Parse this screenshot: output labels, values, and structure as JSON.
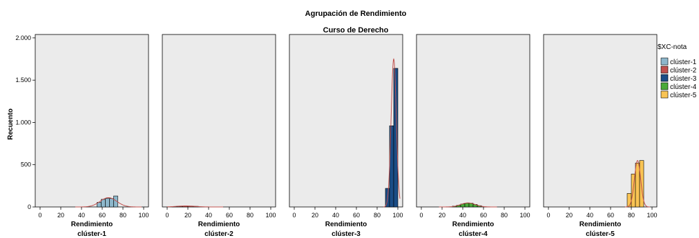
{
  "chart_data": {
    "type": "bar",
    "title": "Agrupación de Rendimiento",
    "subtitle": "Curso de Derecho",
    "ylabel": "Recuento",
    "ylim": [
      0,
      2000
    ],
    "yticks": [
      0,
      500,
      1000,
      1500,
      2000
    ],
    "ytick_labels": [
      "0",
      "500",
      "1.000",
      "1.500",
      "2.000"
    ],
    "xlim": [
      0,
      100
    ],
    "xticks": [
      0,
      20,
      40,
      60,
      80,
      100
    ],
    "xtick_labels": [
      "0",
      "20",
      "40",
      "60",
      "80",
      "100"
    ],
    "legend": {
      "title": "$XC-nota",
      "position": "right",
      "items": [
        {
          "label": "clúster-1",
          "color": "#8db7cb"
        },
        {
          "label": "clúster-2",
          "color": "#c0504d"
        },
        {
          "label": "clúster-3",
          "color": "#1b4d86"
        },
        {
          "label": "clúster-4",
          "color": "#4aaa3a"
        },
        {
          "label": "clúster-5",
          "color": "#f9c454"
        }
      ]
    },
    "curve_color": "#c0504d",
    "panels": [
      {
        "xlabel": "Rendimiento",
        "sublabel": "clúster-1",
        "color": "#8db7cb",
        "bars": [
          {
            "x0": 55,
            "x1": 59,
            "y": 55
          },
          {
            "x0": 59,
            "x1": 63,
            "y": 90
          },
          {
            "x0": 63,
            "x1": 67,
            "y": 100
          },
          {
            "x0": 67,
            "x1": 71,
            "y": 100
          },
          {
            "x0": 71,
            "x1": 75,
            "y": 130
          }
        ],
        "curve": {
          "mean": 66,
          "sd": 8,
          "peak": 110
        }
      },
      {
        "xlabel": "Rendimiento",
        "sublabel": "clúster-2",
        "color": "#c0504d",
        "bars": [
          {
            "x0": 5,
            "x1": 10,
            "y": 5
          },
          {
            "x0": 10,
            "x1": 15,
            "y": 8
          },
          {
            "x0": 15,
            "x1": 20,
            "y": 10
          },
          {
            "x0": 20,
            "x1": 25,
            "y": 10
          },
          {
            "x0": 25,
            "x1": 30,
            "y": 7
          }
        ],
        "curve": {
          "mean": 18,
          "sd": 9,
          "peak": 12
        }
      },
      {
        "xlabel": "Rendimiento",
        "sublabel": "clúster-3",
        "color": "#1b4d86",
        "bars": [
          {
            "x0": 88,
            "x1": 92,
            "y": 220
          },
          {
            "x0": 92,
            "x1": 96,
            "y": 960
          },
          {
            "x0": 96,
            "x1": 100,
            "y": 1640
          }
        ],
        "curve": {
          "mean": 96,
          "sd": 2.5,
          "peak": 1750
        }
      },
      {
        "xlabel": "Rendimiento",
        "sublabel": "clúster-4",
        "color": "#4aaa3a",
        "bars": [
          {
            "x0": 30,
            "x1": 34,
            "y": 10
          },
          {
            "x0": 34,
            "x1": 38,
            "y": 20
          },
          {
            "x0": 38,
            "x1": 42,
            "y": 35
          },
          {
            "x0": 42,
            "x1": 46,
            "y": 45
          },
          {
            "x0": 46,
            "x1": 50,
            "y": 45
          },
          {
            "x0": 50,
            "x1": 54,
            "y": 30
          },
          {
            "x0": 54,
            "x1": 58,
            "y": 15
          }
        ],
        "curve": {
          "mean": 45,
          "sd": 7,
          "peak": 48
        }
      },
      {
        "xlabel": "Rendimiento",
        "sublabel": "clúster-5",
        "color": "#f9c454",
        "bars": [
          {
            "x0": 76,
            "x1": 80,
            "y": 160
          },
          {
            "x0": 80,
            "x1": 84,
            "y": 390
          },
          {
            "x0": 84,
            "x1": 88,
            "y": 520
          },
          {
            "x0": 88,
            "x1": 92,
            "y": 550
          }
        ],
        "curve": {
          "mean": 86,
          "sd": 3,
          "peak": 550
        }
      }
    ]
  }
}
